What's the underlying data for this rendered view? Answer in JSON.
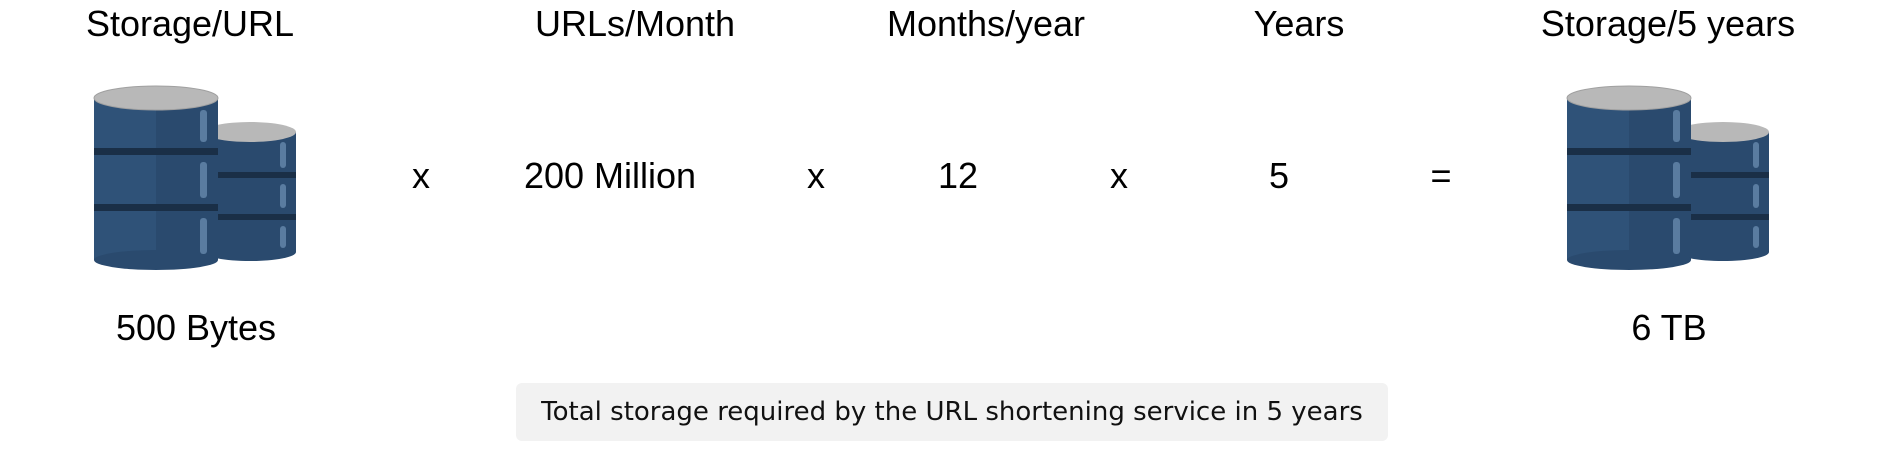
{
  "headers": {
    "storage_per_url": "Storage/URL",
    "urls_per_month": "URLs/Month",
    "months_per_year": "Months/year",
    "years": "Years",
    "storage_5_years": "Storage/5 years"
  },
  "equation": {
    "op1": "x",
    "urls_per_month": "200 Million",
    "op2": "x",
    "months_per_year": "12",
    "op3": "x",
    "years": "5",
    "equals": "="
  },
  "values": {
    "storage_per_url": "500 Bytes",
    "storage_5_years": "6 TB"
  },
  "caption": "Total storage required by the URL shortening service in 5 years",
  "icons": {
    "left": "database-icon",
    "right": "database-icon"
  },
  "colors": {
    "db_body": "#2a4a6e",
    "db_dark": "#1a2f47",
    "db_top": "#b8b8b8",
    "caption_bg": "#f2f2f2"
  }
}
